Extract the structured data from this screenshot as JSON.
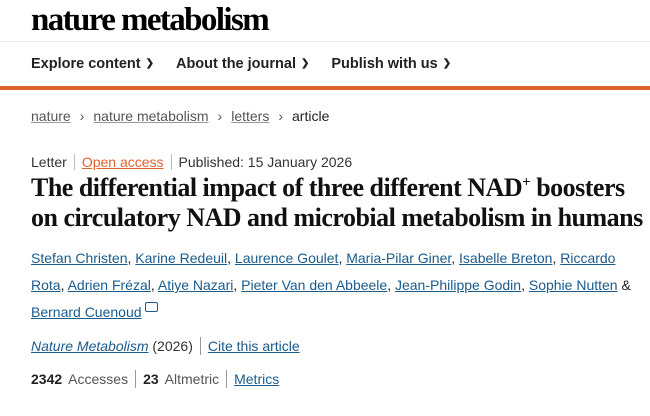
{
  "header": {
    "logo": "nature metabolism"
  },
  "nav": {
    "items": [
      {
        "label": "Explore content"
      },
      {
        "label": "About the journal"
      },
      {
        "label": "Publish with us"
      }
    ]
  },
  "breadcrumb": {
    "items": [
      "nature",
      "nature metabolism",
      "letters"
    ],
    "current": "article"
  },
  "meta": {
    "type": "Letter",
    "access": "Open access",
    "published": "Published: 15 January 2026"
  },
  "title": {
    "line1": "The differential impact of three different NAD",
    "sup": "+",
    "line2": " boosters on circulatory NAD and microbial metabolism in humans"
  },
  "authors": [
    "Stefan Christen",
    "Karine Redeuil",
    "Laurence Goulet",
    "Maria-Pilar Giner",
    "Isabelle Breton",
    "Riccardo Rota",
    "Adrien Frézal",
    "Atiye Nazari",
    "Pieter Van den Abbeele",
    "Jean-Philippe Godin",
    "Sophie Nutten",
    "Bernard Cuenoud"
  ],
  "authors_conj": "&",
  "journal": {
    "name": "Nature Metabolism",
    "year": "(2026)",
    "cite": "Cite this article"
  },
  "stats": {
    "accesses": "2342",
    "accesses_label": "Accesses",
    "altmetric": "23",
    "altmetric_label": "Altmetric",
    "metrics": "Metrics"
  },
  "colors": {
    "accent": "#e0622e",
    "link": "#1a5b8e"
  }
}
